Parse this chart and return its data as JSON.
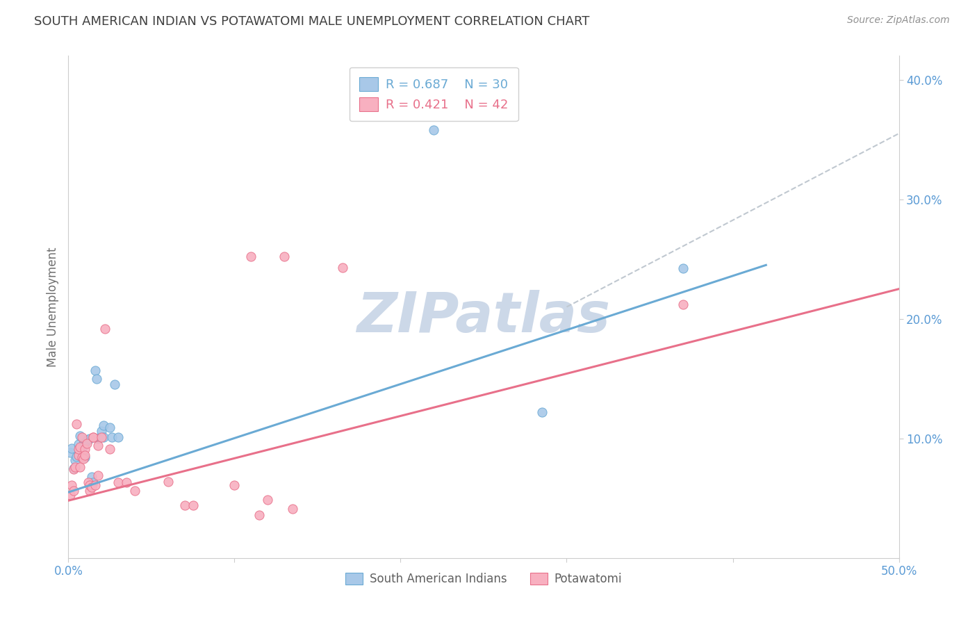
{
  "title": "SOUTH AMERICAN INDIAN VS POTAWATOMI MALE UNEMPLOYMENT CORRELATION CHART",
  "source": "Source: ZipAtlas.com",
  "ylabel": "Male Unemployment",
  "xlim": [
    0.0,
    0.5
  ],
  "ylim": [
    0.0,
    0.42
  ],
  "xticks": [
    0.0,
    0.1,
    0.2,
    0.3,
    0.4,
    0.5
  ],
  "xticklabels": [
    "0.0%",
    "",
    "",
    "",
    "",
    "50.0%"
  ],
  "yticks_right": [
    0.1,
    0.2,
    0.3,
    0.4
  ],
  "yticklabels_right": [
    "10.0%",
    "20.0%",
    "30.0%",
    "40.0%"
  ],
  "legend_r1": "R = 0.687",
  "legend_n1": "N = 30",
  "legend_r2": "R = 0.421",
  "legend_n2": "N = 42",
  "color_blue": "#a8c8e8",
  "color_pink": "#f8b0c0",
  "line_blue": "#6aaad4",
  "line_pink": "#e8708a",
  "line_dashed": "#c0c8d0",
  "title_color": "#404040",
  "source_color": "#909090",
  "watermark": "ZIPatlas",
  "watermark_color": "#ccd8e8",
  "blue_line_x": [
    0.0,
    0.42
  ],
  "blue_line_y": [
    0.055,
    0.245
  ],
  "pink_line_x": [
    0.0,
    0.5
  ],
  "pink_line_y": [
    0.048,
    0.225
  ],
  "dash_line_x": [
    0.3,
    0.5
  ],
  "dash_line_y": [
    0.21,
    0.355
  ],
  "blue_scatter": [
    [
      0.001,
      0.088
    ],
    [
      0.002,
      0.092
    ],
    [
      0.003,
      0.075
    ],
    [
      0.004,
      0.082
    ],
    [
      0.005,
      0.085
    ],
    [
      0.006,
      0.095
    ],
    [
      0.007,
      0.102
    ],
    [
      0.008,
      0.092
    ],
    [
      0.009,
      0.096
    ],
    [
      0.01,
      0.096
    ],
    [
      0.01,
      0.084
    ],
    [
      0.011,
      0.098
    ],
    [
      0.012,
      0.099
    ],
    [
      0.013,
      0.1
    ],
    [
      0.014,
      0.068
    ],
    [
      0.015,
      0.063
    ],
    [
      0.016,
      0.157
    ],
    [
      0.017,
      0.15
    ],
    [
      0.018,
      0.1
    ],
    [
      0.019,
      0.101
    ],
    [
      0.02,
      0.106
    ],
    [
      0.021,
      0.111
    ],
    [
      0.021,
      0.101
    ],
    [
      0.025,
      0.109
    ],
    [
      0.026,
      0.101
    ],
    [
      0.028,
      0.145
    ],
    [
      0.03,
      0.101
    ],
    [
      0.22,
      0.358
    ],
    [
      0.285,
      0.122
    ],
    [
      0.37,
      0.242
    ]
  ],
  "pink_scatter": [
    [
      0.001,
      0.053
    ],
    [
      0.002,
      0.061
    ],
    [
      0.003,
      0.074
    ],
    [
      0.003,
      0.056
    ],
    [
      0.004,
      0.076
    ],
    [
      0.005,
      0.112
    ],
    [
      0.006,
      0.086
    ],
    [
      0.006,
      0.091
    ],
    [
      0.007,
      0.093
    ],
    [
      0.007,
      0.076
    ],
    [
      0.008,
      0.084
    ],
    [
      0.008,
      0.101
    ],
    [
      0.009,
      0.083
    ],
    [
      0.01,
      0.091
    ],
    [
      0.01,
      0.086
    ],
    [
      0.011,
      0.096
    ],
    [
      0.012,
      0.063
    ],
    [
      0.013,
      0.056
    ],
    [
      0.013,
      0.061
    ],
    [
      0.014,
      0.059
    ],
    [
      0.015,
      0.101
    ],
    [
      0.015,
      0.101
    ],
    [
      0.016,
      0.061
    ],
    [
      0.018,
      0.094
    ],
    [
      0.018,
      0.069
    ],
    [
      0.02,
      0.101
    ],
    [
      0.022,
      0.192
    ],
    [
      0.025,
      0.091
    ],
    [
      0.03,
      0.063
    ],
    [
      0.035,
      0.063
    ],
    [
      0.04,
      0.056
    ],
    [
      0.06,
      0.064
    ],
    [
      0.07,
      0.044
    ],
    [
      0.075,
      0.044
    ],
    [
      0.1,
      0.061
    ],
    [
      0.11,
      0.252
    ],
    [
      0.115,
      0.036
    ],
    [
      0.12,
      0.049
    ],
    [
      0.13,
      0.252
    ],
    [
      0.135,
      0.041
    ],
    [
      0.165,
      0.243
    ],
    [
      0.37,
      0.212
    ]
  ]
}
